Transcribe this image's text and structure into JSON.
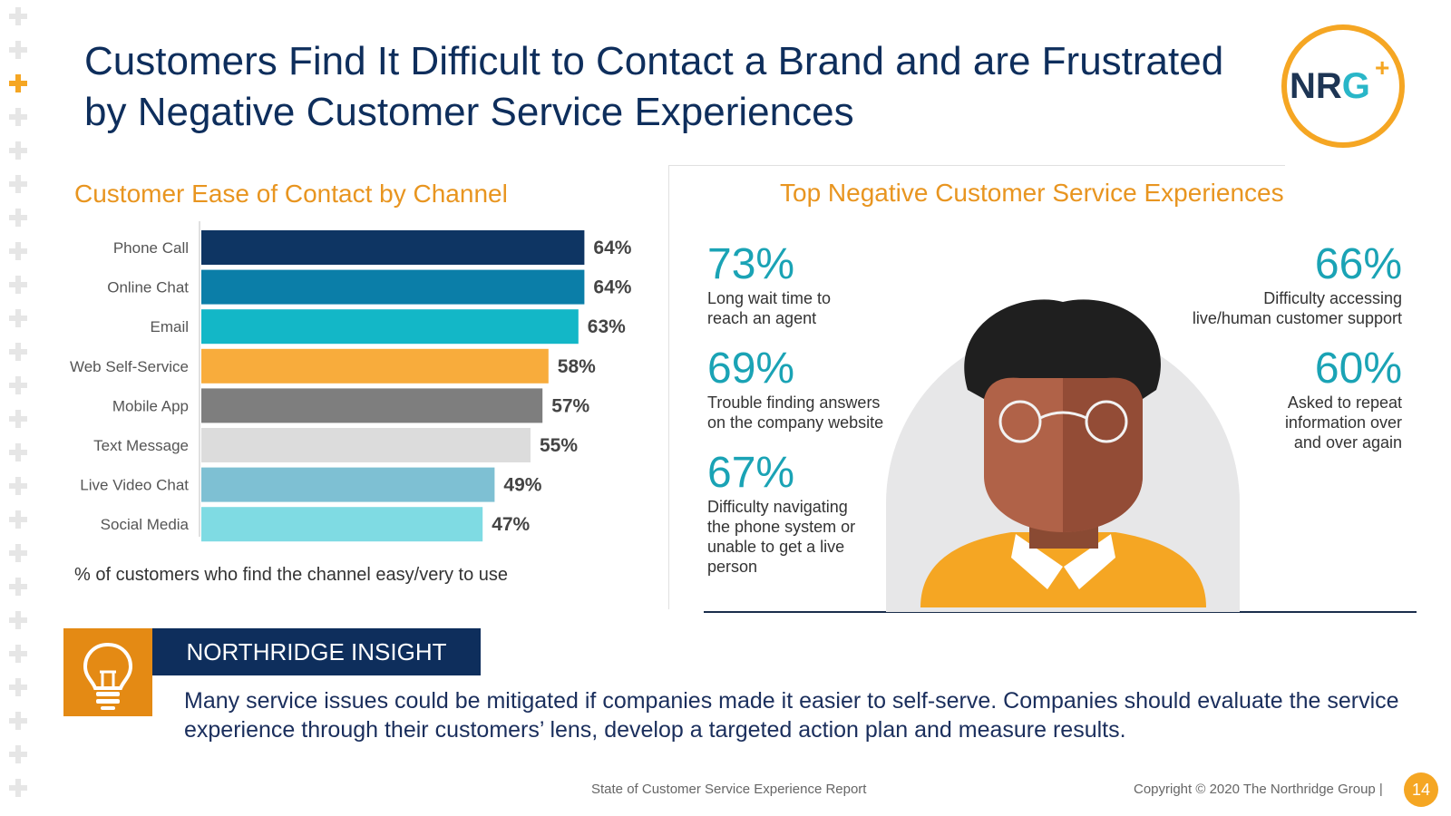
{
  "slide": {
    "title_line1": "Customers Find It Difficult to Contact a Brand and are Frustrated",
    "title_line2": "by Negative Customer Service Experiences",
    "logo_text": "NRG",
    "logo_plus": "+"
  },
  "chart_data": {
    "type": "bar",
    "orientation": "horizontal",
    "title": "Customer Ease of Contact by Channel",
    "categories": [
      "Phone Call",
      "Online Chat",
      "Email",
      "Web Self-Service",
      "Mobile App",
      "Text Message",
      "Live Video Chat",
      "Social Media"
    ],
    "values": [
      64,
      64,
      63,
      58,
      57,
      55,
      49,
      47
    ],
    "value_labels": [
      "64%",
      "64%",
      "63%",
      "58%",
      "57%",
      "55%",
      "49%",
      "47%"
    ],
    "colors": [
      "#0e3563",
      "#0b7ea8",
      "#13b7c7",
      "#f8ac3c",
      "#7e7e7e",
      "#dcdcdc",
      "#7ec0d3",
      "#7fdbe3"
    ],
    "xlim": [
      0,
      100
    ],
    "xlabel": "",
    "ylabel": "",
    "note": "% of customers who find the channel easy/very to use"
  },
  "negative": {
    "title": "Top Negative Customer Service Experiences",
    "stats": [
      {
        "pct": "73%",
        "desc": "Long wait time to reach an agent"
      },
      {
        "pct": "69%",
        "desc": "Trouble finding answers on the company website"
      },
      {
        "pct": "67%",
        "desc": "Difficulty navigating the phone system or unable to get a live person"
      },
      {
        "pct": "66%",
        "desc": "Difficulty accessing live/human customer support"
      },
      {
        "pct": "60%",
        "desc": "Asked to repeat information over and over again"
      }
    ]
  },
  "insight": {
    "label": "NORTHRIDGE INSIGHT",
    "text": "Many service issues could be mitigated if companies made it easier to self-serve. Companies should evaluate the service experience through their customers’ lens, develop a targeted action plan and measure results."
  },
  "footer": {
    "report": "State of Customer Service Experience Report",
    "copyright": "Copyright © 2020 The Northridge Group   |",
    "page": "14"
  },
  "colors": {
    "navy": "#0e2e5c",
    "orange": "#f5a623",
    "teal": "#1aa3b5"
  }
}
